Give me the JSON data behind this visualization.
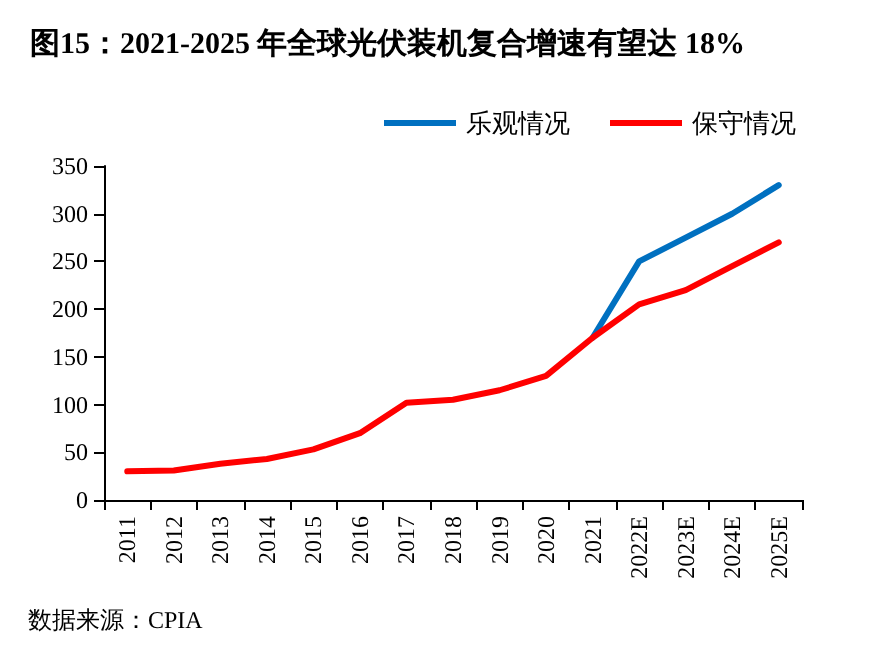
{
  "chart_data": {
    "type": "line",
    "title": "图15：2021-2025 年全球光伏装机复合增速有望达 18%",
    "categories": [
      "2011",
      "2012",
      "2013",
      "2014",
      "2015",
      "2016",
      "2017",
      "2018",
      "2019",
      "2020",
      "2021",
      "2022E",
      "2023E",
      "2024E",
      "2025E"
    ],
    "series": [
      {
        "name": "乐观情况",
        "color": "#0070c0",
        "values": [
          null,
          null,
          null,
          null,
          null,
          null,
          null,
          null,
          null,
          null,
          170,
          250,
          275,
          300,
          330
        ]
      },
      {
        "name": "保守情况",
        "color": "#ff0000",
        "values": [
          30,
          31,
          38,
          43,
          53,
          70,
          102,
          105,
          115,
          130,
          170,
          205,
          220,
          245,
          270
        ]
      }
    ],
    "ylim": [
      0,
      350
    ],
    "yticks": [
      0,
      50,
      100,
      150,
      200,
      250,
      300,
      350
    ],
    "grid": false,
    "legend": "top right",
    "marker": "none",
    "line_style": "solid",
    "annotations": [
      "数据来源：CPIA"
    ]
  }
}
